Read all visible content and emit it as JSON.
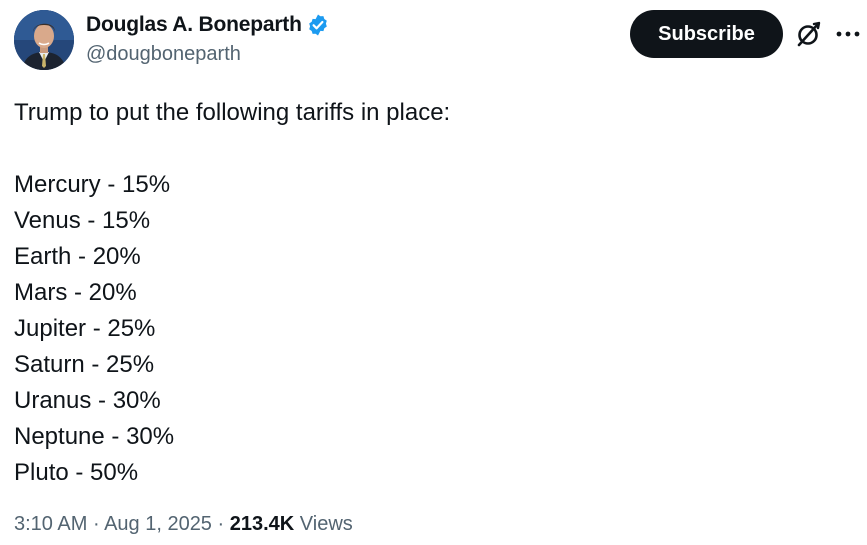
{
  "author": {
    "display_name": "Douglas A. Boneparth",
    "handle": "@dougboneparth",
    "verified": true
  },
  "actions": {
    "subscribe_label": "Subscribe",
    "grok_icon": "grok-icon",
    "more_icon": "more-icon"
  },
  "tweet": {
    "intro": "Trump to put the following tariffs in place:",
    "lines": [
      "Mercury - 15%",
      "Venus - 15%",
      "Earth - 20%",
      "Mars - 20%",
      "Jupiter - 25%",
      "Saturn - 25%",
      "Uranus - 30%",
      "Neptune - 30%",
      "Pluto - 50%"
    ]
  },
  "meta": {
    "time": "3:10 AM",
    "separator": " · ",
    "date": "Aug 1, 2025",
    "views_count": "213.4K",
    "views_label": "Views"
  },
  "colors": {
    "text": "#0f1419",
    "secondary": "#536471",
    "verified": "#1d9bf0",
    "button_bg": "#0f1419"
  }
}
